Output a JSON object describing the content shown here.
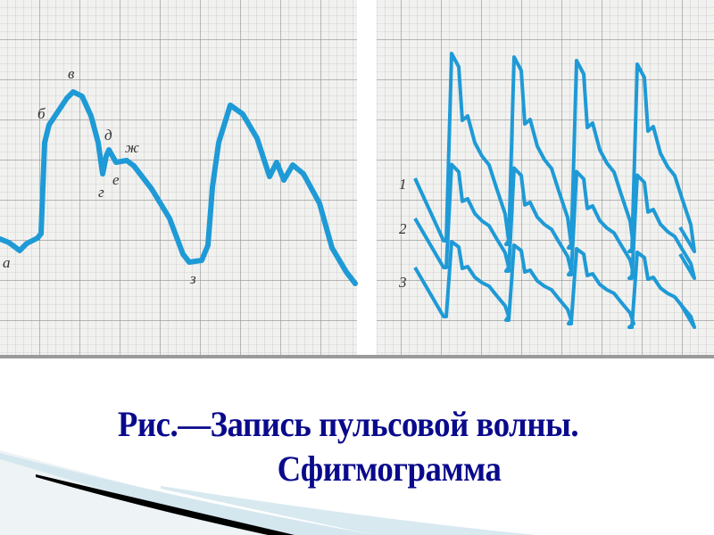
{
  "figure": {
    "wave_labels": [
      "а",
      "б",
      "в",
      "г",
      "д",
      "е",
      "ж",
      "з"
    ],
    "trace_labels": [
      "1",
      "2",
      "3"
    ],
    "trace_color": "#1e9ad6",
    "grid_color": "#a9a9a9",
    "paper_color": "#f1f1ef"
  },
  "caption": {
    "line1": "Рис.—Запись пульсовой волны.",
    "line2": "Сфигмограмма",
    "color": "#0a0a8c"
  }
}
